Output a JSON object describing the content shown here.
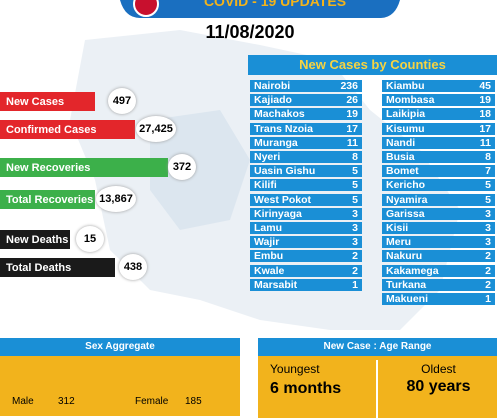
{
  "header": {
    "title": "COVID - 19 UPDATES",
    "date": "11/08/2020"
  },
  "stats": [
    {
      "label": "New Cases",
      "value": 497
    },
    {
      "label": "Confirmed Cases",
      "value": "27,425"
    },
    {
      "label": "New Recoveries",
      "value": 372
    },
    {
      "label": "Total Recoveries",
      "value": "13,867"
    },
    {
      "label": "New Deaths",
      "value": 15
    },
    {
      "label": "Total Deaths",
      "value": 438
    }
  ],
  "counties": {
    "title": "New Cases by Counties",
    "left": [
      [
        "Nairobi",
        236
      ],
      [
        "Kajiado",
        26
      ],
      [
        "Machakos",
        19
      ],
      [
        "Trans Nzoia",
        17
      ],
      [
        "Muranga",
        11
      ],
      [
        "Nyeri",
        8
      ],
      [
        "Uasin Gishu",
        5
      ],
      [
        "Kilifi",
        5
      ],
      [
        "West Pokot",
        5
      ],
      [
        "Kirinyaga",
        3
      ],
      [
        "Lamu",
        3
      ],
      [
        "Wajir",
        3
      ],
      [
        "Embu",
        2
      ],
      [
        "Kwale",
        2
      ],
      [
        "Marsabit",
        1
      ]
    ],
    "right": [
      [
        "Kiambu",
        45
      ],
      [
        "Mombasa",
        19
      ],
      [
        "Laikipia",
        18
      ],
      [
        "Kisumu",
        17
      ],
      [
        "Nandi",
        11
      ],
      [
        "Busia",
        8
      ],
      [
        "Bomet",
        7
      ],
      [
        "Kericho",
        5
      ],
      [
        "Nyamira",
        5
      ],
      [
        "Garissa",
        3
      ],
      [
        "Kisii",
        3
      ],
      [
        "Meru",
        3
      ],
      [
        "Nakuru",
        2
      ],
      [
        "Kakamega",
        2
      ],
      [
        "Turkana",
        2
      ],
      [
        "Makueni",
        1
      ]
    ]
  },
  "sex_aggregate": {
    "title": "Sex Aggregate",
    "male_label": "Male",
    "male": 312,
    "female_label": "Female",
    "female": 185
  },
  "age_range": {
    "title": "New Case : Age Range",
    "youngest_label": "Youngest",
    "youngest": "6 months",
    "oldest_label": "Oldest",
    "oldest": "80 years"
  }
}
